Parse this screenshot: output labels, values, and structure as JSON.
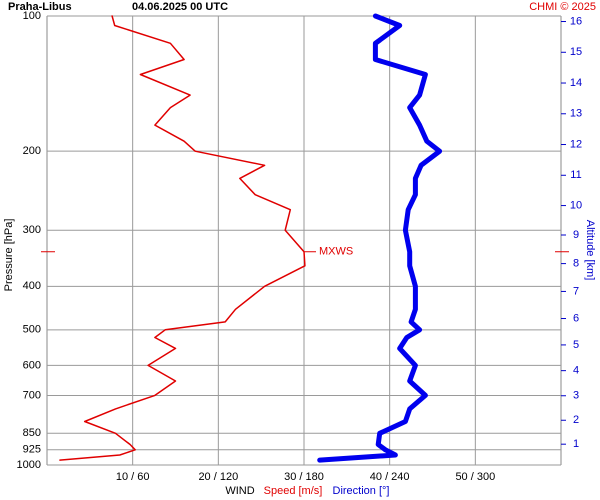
{
  "chart_data": {
    "type": "line",
    "title": "Praha-Libus",
    "subtitle": "04.06.2025 00 UTC",
    "credit": "CHMI © 2025",
    "ylabel": "Pressure [hPa]",
    "y2label": "Altitude [km]",
    "xlabel": "WIND",
    "pressure": [
      975,
      950,
      925,
      900,
      850,
      800,
      750,
      700,
      650,
      600,
      550,
      520,
      500,
      480,
      450,
      400,
      360,
      335,
      300,
      270,
      250,
      230,
      215,
      200,
      190,
      175,
      160,
      150,
      135,
      125,
      115,
      105,
      100
    ],
    "series": [
      {
        "name": "Speed [m/s]",
        "color": "#e00000",
        "values": [
          1.5,
          8.5,
          10.3,
          9.7,
          8,
          4.4,
          8,
          12.6,
          15,
          11.8,
          15,
          12.6,
          13.8,
          20.8,
          22,
          25.4,
          30.1,
          30,
          27.8,
          28.4,
          24.3,
          22.5,
          25.4,
          17.3,
          16,
          12.6,
          14.4,
          16.7,
          10.9,
          16,
          14.4,
          7.9,
          7.6
        ]
      },
      {
        "name": "Direction [°]",
        "color": "#0000ee",
        "axis": "x2",
        "values": [
          191,
          244,
          237,
          232,
          233,
          251,
          254,
          265,
          254,
          258,
          247,
          252,
          261,
          255,
          258,
          258,
          254,
          254,
          251,
          253,
          258,
          258,
          262,
          275,
          266,
          261,
          254,
          261,
          265,
          230,
          230,
          247,
          230
        ]
      }
    ],
    "xlim": [
      0,
      60
    ],
    "x2lim": [
      0,
      360
    ],
    "xticks": [
      {
        "value": 10,
        "label": "10 / 60"
      },
      {
        "value": 20,
        "label": "20 / 120"
      },
      {
        "value": 30,
        "label": "30 / 180"
      },
      {
        "value": 40,
        "label": "40 / 240"
      },
      {
        "value": 50,
        "label": "50 / 300"
      }
    ],
    "ylim": [
      1000,
      100
    ],
    "yticks": [
      100,
      200,
      300,
      400,
      500,
      600,
      700,
      850,
      925,
      1000
    ],
    "log_y": true,
    "y2ticks": [
      1,
      2,
      3,
      4,
      5,
      6,
      7,
      8,
      9,
      10,
      11,
      12,
      13,
      14,
      15,
      16
    ],
    "annotation": {
      "text": "MXWS",
      "pressure": 335,
      "value": 30
    }
  }
}
